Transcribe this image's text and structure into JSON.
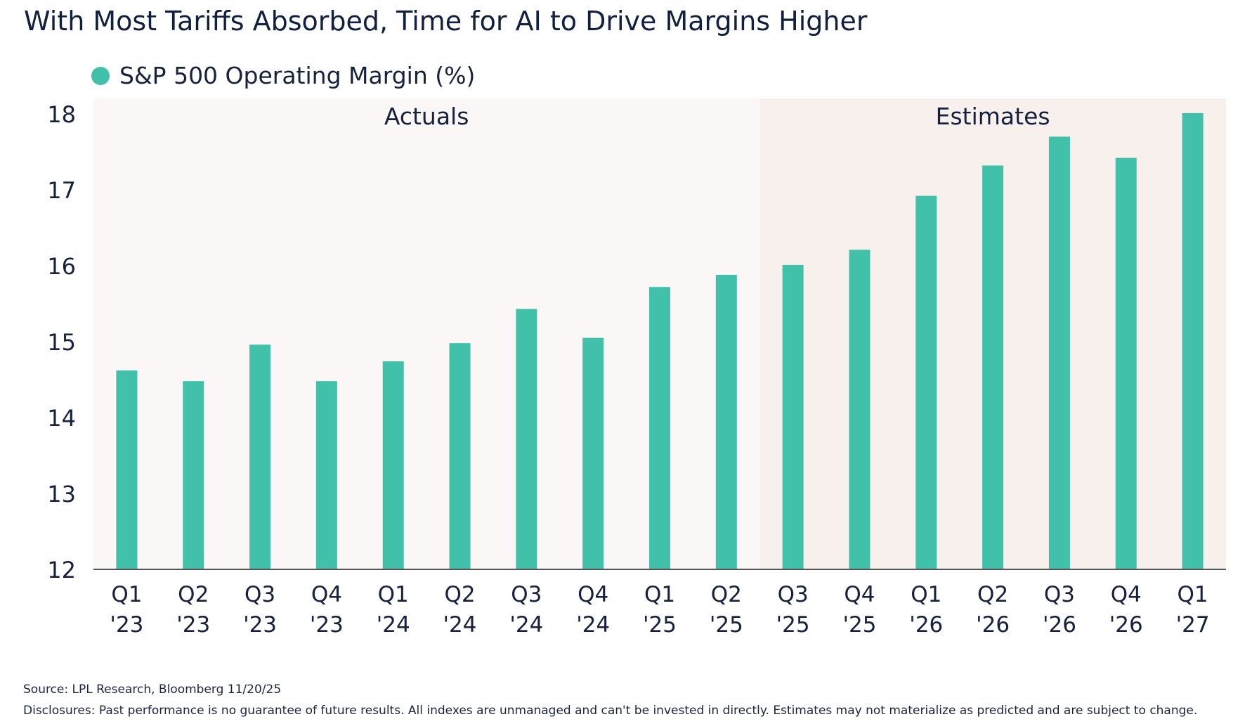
{
  "title": "With Most Tariffs Absorbed, Time for AI to Drive Margins Higher",
  "legend": {
    "label": "S&P 500 Operating Margin (%)"
  },
  "source": "Source: LPL Research, Bloomberg 11/20/25",
  "disclosures": "Disclosures: Past performance is no guarantee of future results. All indexes are unmanaged and can't be invested in directly. Estimates may not materialize as predicted and are subject to change.",
  "colors": {
    "bar": "#41c1aa",
    "actuals_band": "#fbf7f6",
    "estimates_band": "#f8f0ed",
    "axis": "#555555",
    "text": "#16213e"
  },
  "chart_data": {
    "type": "bar",
    "categories": [
      [
        "Q1",
        "'23"
      ],
      [
        "Q2",
        "'23"
      ],
      [
        "Q3",
        "'23"
      ],
      [
        "Q4",
        "'23"
      ],
      [
        "Q1",
        "'24"
      ],
      [
        "Q2",
        "'24"
      ],
      [
        "Q3",
        "'24"
      ],
      [
        "Q4",
        "'24"
      ],
      [
        "Q1",
        "'25"
      ],
      [
        "Q2",
        "'25"
      ],
      [
        "Q3",
        "'25"
      ],
      [
        "Q4",
        "'25"
      ],
      [
        "Q1",
        "'26"
      ],
      [
        "Q2",
        "'26"
      ],
      [
        "Q3",
        "'26"
      ],
      [
        "Q4",
        "'26"
      ],
      [
        "Q1",
        "'27"
      ]
    ],
    "series": [
      {
        "name": "S&P 500 Operating Margin (%)",
        "values": [
          14.62,
          14.48,
          14.96,
          14.48,
          14.74,
          14.98,
          15.43,
          15.05,
          15.72,
          15.88,
          16.01,
          16.21,
          16.92,
          17.32,
          17.7,
          17.42,
          18.01
        ]
      }
    ],
    "ylim": [
      12,
      18
    ],
    "yticks": [
      12,
      13,
      14,
      15,
      16,
      17,
      18
    ],
    "regions": [
      {
        "label": "Actuals",
        "start": 0,
        "end": 9
      },
      {
        "label": "Estimates",
        "start": 10,
        "end": 16
      }
    ],
    "grid": false,
    "legend_position": "top-left"
  }
}
